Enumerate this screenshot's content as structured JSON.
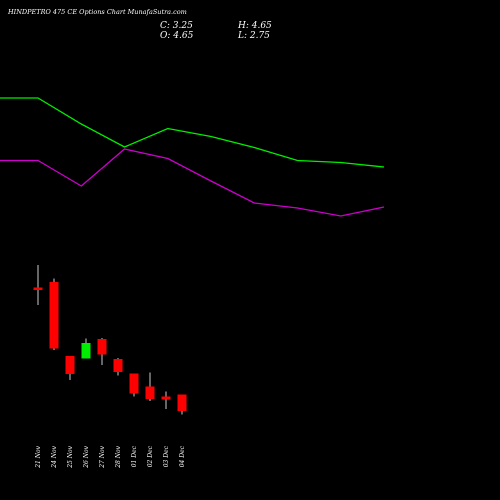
{
  "header": {
    "title": "HINDPETRO 475 CE Options  Chart MunafaSutra.com",
    "close_label": "C: 3.25",
    "high_label": "H: 4.65",
    "open_label": "O: 4.65",
    "low_label": "L: 2.75"
  },
  "chart_data": {
    "type": "candlestick",
    "categories": [
      "21 Nov",
      "24 Nov",
      "25 Nov",
      "26 Nov",
      "27 Nov",
      "28 Nov",
      "01 Dec",
      "02 Dec",
      "03 Dec",
      "04 Dec"
    ],
    "candles": [
      {
        "date": "21 Nov",
        "open": 30.5,
        "close": 30.0,
        "high": 35.0,
        "low": 27.0,
        "direction": "down"
      },
      {
        "date": "24 Nov",
        "open": 31.6,
        "close": 18.3,
        "high": 32.3,
        "low": 18.0,
        "direction": "down"
      },
      {
        "date": "25 Nov",
        "open": 16.8,
        "close": 13.2,
        "high": 16.8,
        "low": 12.0,
        "direction": "down"
      },
      {
        "date": "26 Nov",
        "open": 16.3,
        "close": 19.4,
        "high": 20.3,
        "low": 16.3,
        "direction": "up"
      },
      {
        "date": "27 Nov",
        "open": 20.2,
        "close": 17.1,
        "high": 20.4,
        "low": 15.0,
        "direction": "down"
      },
      {
        "date": "28 Nov",
        "open": 16.2,
        "close": 13.6,
        "high": 16.4,
        "low": 12.9,
        "direction": "down"
      },
      {
        "date": "01 Dec",
        "open": 13.3,
        "close": 9.3,
        "high": 13.3,
        "low": 8.7,
        "direction": "down"
      },
      {
        "date": "02 Dec",
        "open": 10.7,
        "close": 8.2,
        "high": 13.5,
        "low": 7.8,
        "direction": "down"
      },
      {
        "date": "03 Dec",
        "open": 8.7,
        "close": 8.1,
        "high": 9.7,
        "low": 6.2,
        "direction": "down"
      },
      {
        "date": "04 Dec",
        "open": 9.1,
        "close": 5.8,
        "high": 9.1,
        "low": 5.1,
        "direction": "down"
      }
    ],
    "series": [
      {
        "color": "#00ee00",
        "values": [
          68.4,
          68.4,
          63.2,
          58.6,
          62.3,
          60.7,
          58.5,
          55.9,
          55.5,
          54.6
        ]
      },
      {
        "color": "#cc00cc",
        "values": [
          55.9,
          55.9,
          50.8,
          58.2,
          56.3,
          51.8,
          47.4,
          46.4,
          44.8,
          46.6
        ]
      }
    ],
    "ylim": [
      0,
      76
    ],
    "grid": false,
    "colors": {
      "background": "#000000",
      "up": "#00ee00",
      "down": "#ff0000",
      "wick": "#ffffff"
    }
  }
}
